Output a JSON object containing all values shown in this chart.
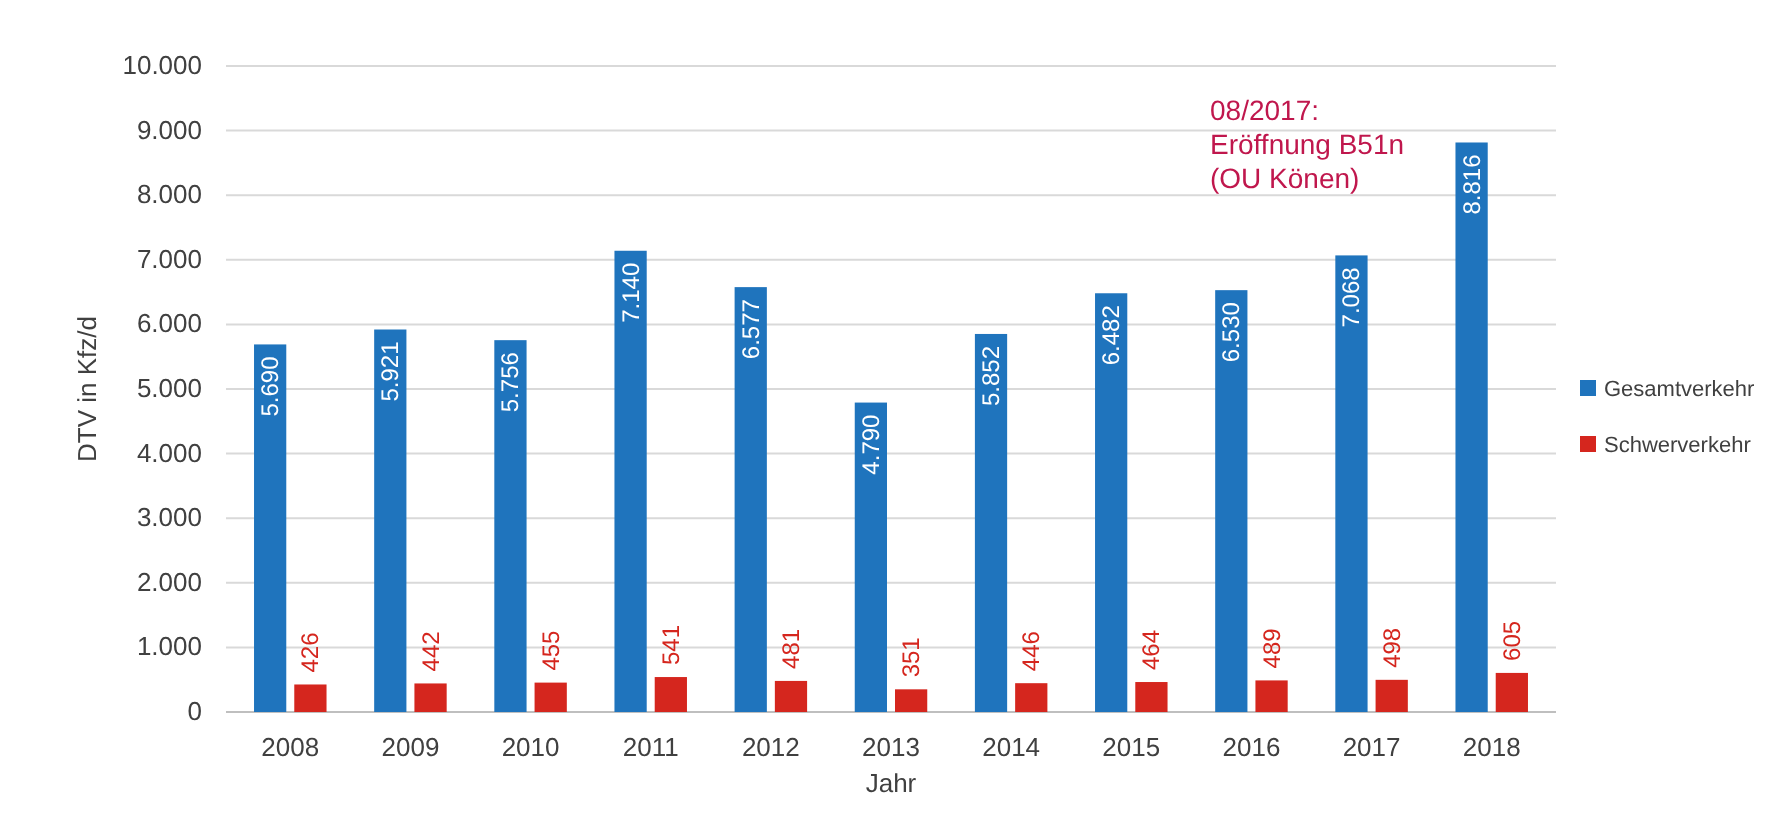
{
  "chart_data": {
    "type": "bar",
    "xlabel": "Jahr",
    "ylabel": "DTV in Kfz/d",
    "categories": [
      "2008",
      "2009",
      "2010",
      "2011",
      "2012",
      "2013",
      "2014",
      "2015",
      "2016",
      "2017",
      "2018"
    ],
    "series": [
      {
        "name": "Gesamtverkehr",
        "color": "#1f74bd",
        "values": [
          5690,
          5921,
          5756,
          7140,
          6577,
          4790,
          5852,
          6482,
          6530,
          7068,
          8816
        ],
        "value_labels": [
          "5.690",
          "5.921",
          "5.756",
          "7.140",
          "6.577",
          "4.790",
          "5.852",
          "6.482",
          "6.530",
          "7.068",
          "8.816"
        ]
      },
      {
        "name": "Schwerverkehr",
        "color": "#d5261e",
        "values": [
          426,
          442,
          455,
          541,
          481,
          351,
          446,
          464,
          489,
          498,
          605
        ],
        "value_labels": [
          "426",
          "442",
          "455",
          "541",
          "481",
          "351",
          "446",
          "464",
          "489",
          "498",
          "605"
        ]
      }
    ],
    "ylim": [
      0,
      10000
    ],
    "yticks": [
      {
        "value": 0,
        "label": "0"
      },
      {
        "value": 1000,
        "label": "1.000"
      },
      {
        "value": 2000,
        "label": "2.000"
      },
      {
        "value": 3000,
        "label": "3.000"
      },
      {
        "value": 4000,
        "label": "4.000"
      },
      {
        "value": 5000,
        "label": "5.000"
      },
      {
        "value": 6000,
        "label": "6.000"
      },
      {
        "value": 7000,
        "label": "7.000"
      },
      {
        "value": 8000,
        "label": "8.000"
      },
      {
        "value": 9000,
        "label": "9.000"
      },
      {
        "value": 10000,
        "label": "10.000"
      }
    ],
    "grid": "y",
    "legend": "right",
    "annotations": [
      "08/2017:\nEröffnung B51n\n(OU Könen)"
    ]
  }
}
